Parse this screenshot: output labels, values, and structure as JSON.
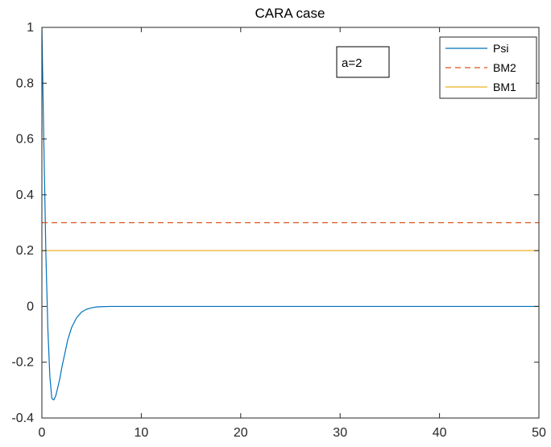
{
  "chart_data": {
    "type": "line",
    "title": "CARA case",
    "xlabel": "",
    "ylabel": "",
    "xlim": [
      0,
      50
    ],
    "ylim": [
      -0.4,
      1
    ],
    "xticks": [
      0,
      10,
      20,
      30,
      40,
      50
    ],
    "yticks": [
      -0.4,
      -0.2,
      0,
      0.2,
      0.4,
      0.6,
      0.8,
      1
    ],
    "xtick_labels": [
      "0",
      "10",
      "20",
      "30",
      "40",
      "50"
    ],
    "ytick_labels": [
      "-0.4",
      "-0.2",
      "0",
      "0.2",
      "0.4",
      "0.6",
      "0.8",
      "1"
    ],
    "grid": false,
    "legend_position": "top-right",
    "annotation": "a=2",
    "series": [
      {
        "name": "Psi",
        "color": "#0072BD",
        "style": "solid",
        "x": [
          0,
          0.2,
          0.4,
          0.6,
          0.8,
          1.0,
          1.2,
          1.4,
          1.6,
          1.8,
          2.0,
          2.3,
          2.6,
          3.0,
          3.5,
          4.0,
          4.5,
          5.0,
          5.5,
          6.0,
          7.0,
          8.0,
          10,
          15,
          20,
          30,
          40,
          50
        ],
        "y": [
          1.0,
          0.58,
          0.19,
          -0.08,
          -0.25,
          -0.33,
          -0.335,
          -0.32,
          -0.29,
          -0.26,
          -0.22,
          -0.17,
          -0.12,
          -0.075,
          -0.04,
          -0.02,
          -0.01,
          -0.005,
          -0.002,
          -0.001,
          0,
          0,
          0,
          0,
          0,
          0,
          0,
          0
        ]
      },
      {
        "name": "BM2",
        "color": "#D95319",
        "style": "dashed",
        "x": [
          0,
          50
        ],
        "y": [
          0.3,
          0.3
        ]
      },
      {
        "name": "BM1",
        "color": "#EDB120",
        "style": "solid",
        "x": [
          0,
          50
        ],
        "y": [
          0.2,
          0.2
        ]
      }
    ]
  }
}
